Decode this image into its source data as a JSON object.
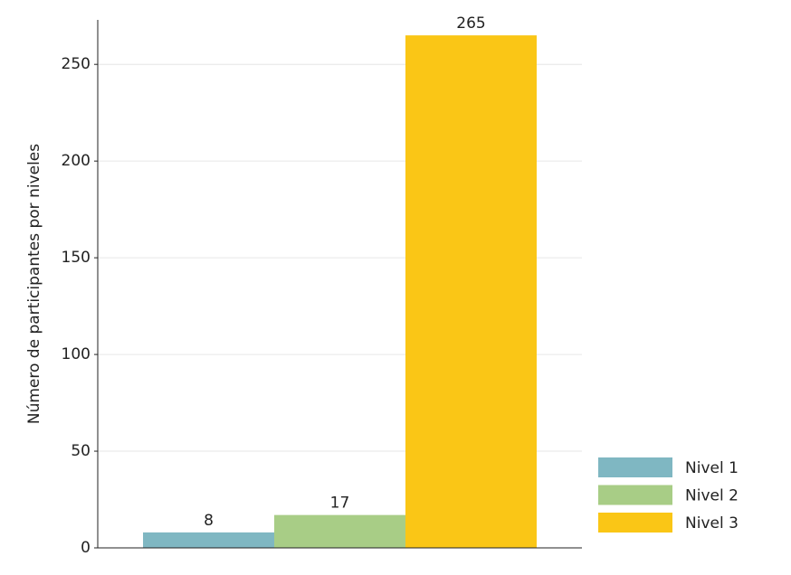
{
  "chart_data": {
    "type": "bar",
    "y_label": "Número de participantes por niveles",
    "categories": [
      null
    ],
    "series": [
      {
        "name": "Nivel 1",
        "color": "#7fb7c2",
        "values": [
          8
        ]
      },
      {
        "name": "Nivel 2",
        "color": "#a8cd86",
        "values": [
          17
        ]
      },
      {
        "name": "Nivel 3",
        "color": "#fac616",
        "values": [
          265
        ]
      }
    ],
    "ylim": [
      0,
      273
    ],
    "yticks": [
      0,
      50,
      100,
      150,
      200,
      250
    ],
    "grid": true,
    "legend": "lower right"
  }
}
